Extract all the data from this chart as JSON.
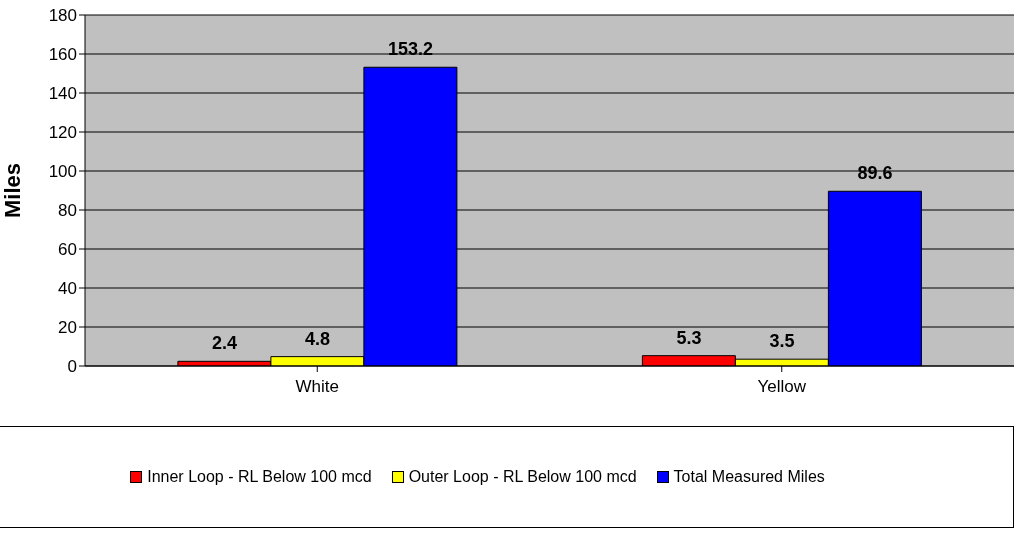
{
  "chart_data": {
    "type": "bar",
    "ylabel": "Miles",
    "categories": [
      "White",
      "Yellow"
    ],
    "series": [
      {
        "name": "Inner Loop - RL Below 100 mcd",
        "color": "#ff0000",
        "values": [
          2.4,
          5.3
        ]
      },
      {
        "name": "Outer Loop - RL Below 100 mcd",
        "color": "#ffff00",
        "values": [
          4.8,
          3.5
        ]
      },
      {
        "name": "Total Measured Miles",
        "color": "#0000ff",
        "values": [
          153.2,
          89.6
        ]
      }
    ],
    "ylim": [
      0,
      180
    ],
    "yticks": [
      0,
      20,
      40,
      60,
      80,
      100,
      120,
      140,
      160,
      180
    ],
    "grid": "y",
    "legend": "bottom",
    "data_labels": true
  }
}
